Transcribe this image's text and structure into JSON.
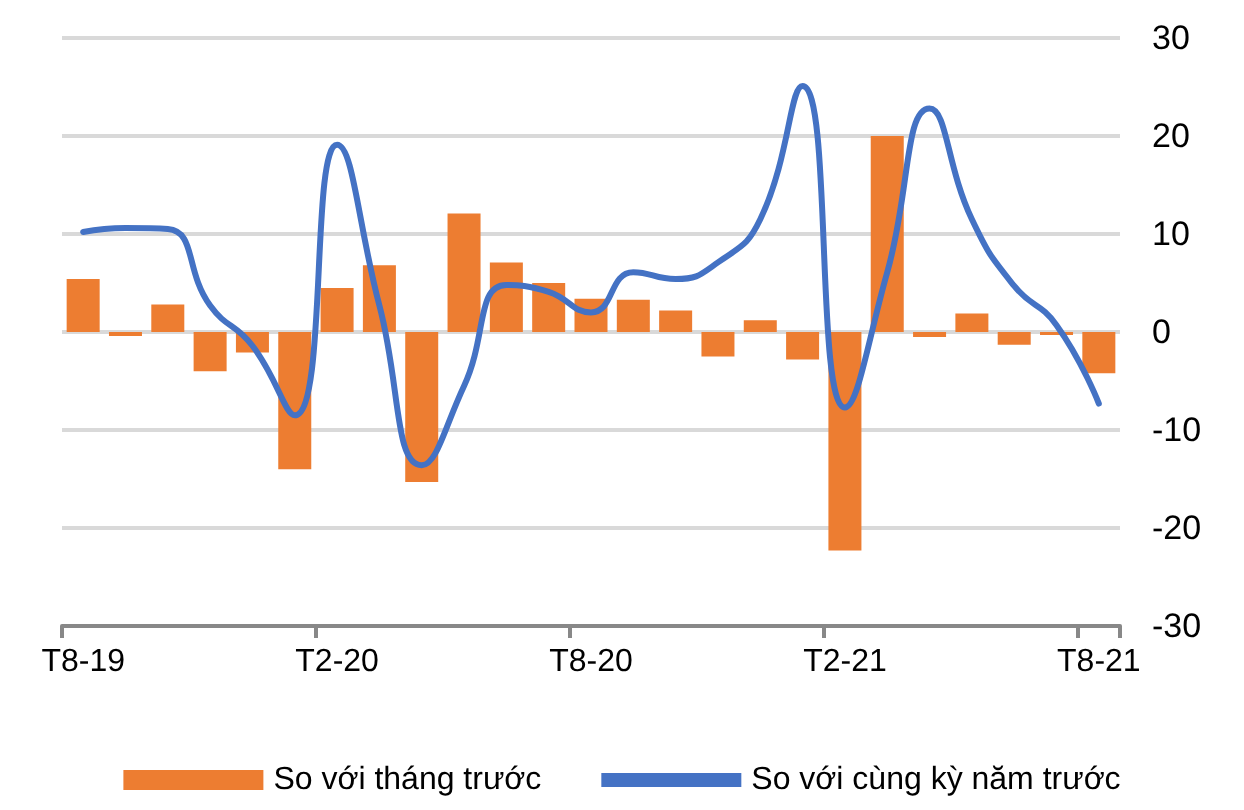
{
  "chart_data": {
    "type": "bar",
    "categories": [
      "T8-19",
      null,
      null,
      null,
      null,
      null,
      "T2-20",
      null,
      null,
      null,
      null,
      null,
      "T8-20",
      null,
      null,
      null,
      null,
      null,
      "T2-21",
      null,
      null,
      null,
      null,
      null,
      "T8-21"
    ],
    "series": [
      {
        "name": "So với tháng trước",
        "color": "#ed7d31",
        "values": [
          5.4,
          -0.4,
          2.8,
          -4.0,
          -2.1,
          -14.0,
          4.5,
          6.8,
          -15.3,
          12.1,
          7.1,
          5.0,
          3.4,
          3.3,
          2.2,
          -2.5,
          1.2,
          -2.8,
          -22.3,
          20,
          -0.5,
          1.9,
          -1.3,
          -0.3,
          -4.2
        ]
      },
      {
        "name": "So với cùng kỳ năm trước",
        "type": "line",
        "color": "#4472c4",
        "marker": "none",
        "values": [
          10.2,
          10.6,
          10.5,
          2.7,
          -1.4,
          -8.5,
          19.1,
          2.7,
          -13.6,
          -5.5,
          4.8,
          4.1,
          2.0,
          6.1,
          5.4,
          7.1,
          11.5,
          25.1,
          -7.7,
          6.1,
          22.8,
          11.5,
          4.7,
          0.7,
          -7.3
        ]
      }
    ],
    "ylim": [
      -30,
      30
    ],
    "yticks": [
      -30,
      -20,
      -10,
      0,
      10,
      20,
      30
    ],
    "grid": "y",
    "legend": "bottom"
  }
}
